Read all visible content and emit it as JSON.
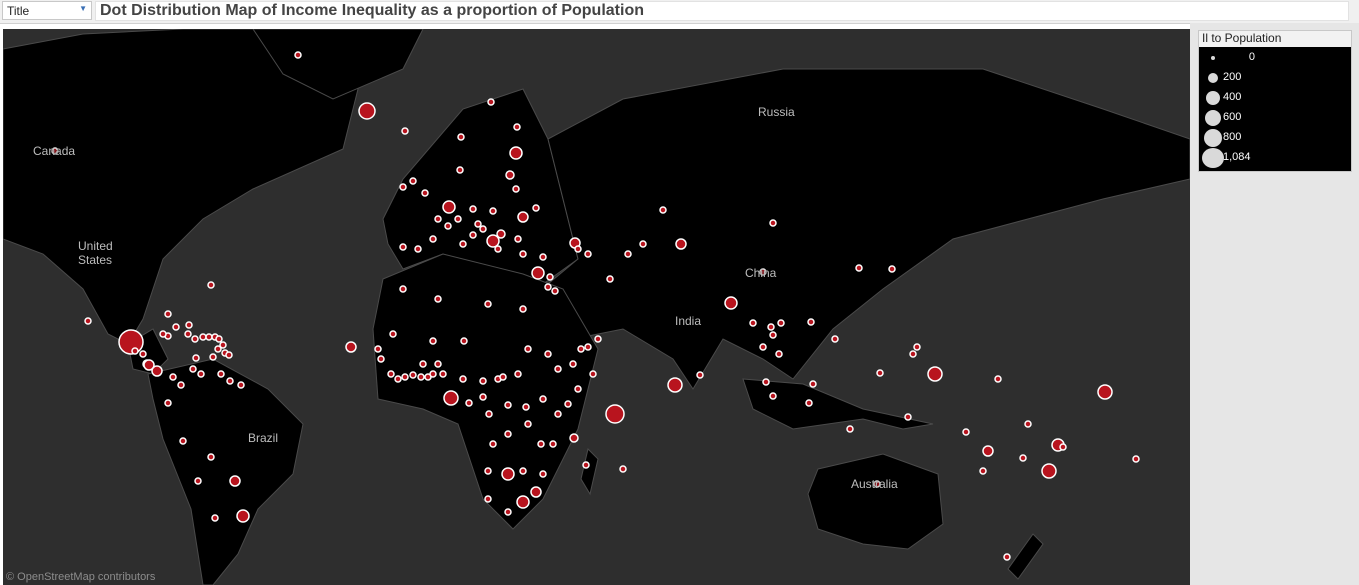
{
  "title_bar": {
    "field_label": "Title",
    "title": "Dot Distribution Map of Income Inequality as a proportion of  Population"
  },
  "map": {
    "attribution": "© OpenStreetMap contributors",
    "labels": [
      {
        "text": "Russia"
      },
      {
        "text": "Canada"
      },
      {
        "text": "United States"
      },
      {
        "text": "China"
      },
      {
        "text": "India"
      },
      {
        "text": "Brazil"
      },
      {
        "text": "Australia"
      }
    ],
    "colors": {
      "ocean": "#2e2e2e",
      "land": "#000000",
      "border": "#4a4a4a",
      "dot_fill": "#b8141e",
      "dot_stroke": "#ffffff"
    }
  },
  "legend": {
    "title": "Il to Population",
    "items": [
      {
        "label": "0",
        "value": 0
      },
      {
        "label": "200",
        "value": 200
      },
      {
        "label": "400",
        "value": 400
      },
      {
        "label": "600",
        "value": 600
      },
      {
        "label": "800",
        "value": 800
      },
      {
        "label": "1,084",
        "value": 1084
      }
    ]
  }
}
